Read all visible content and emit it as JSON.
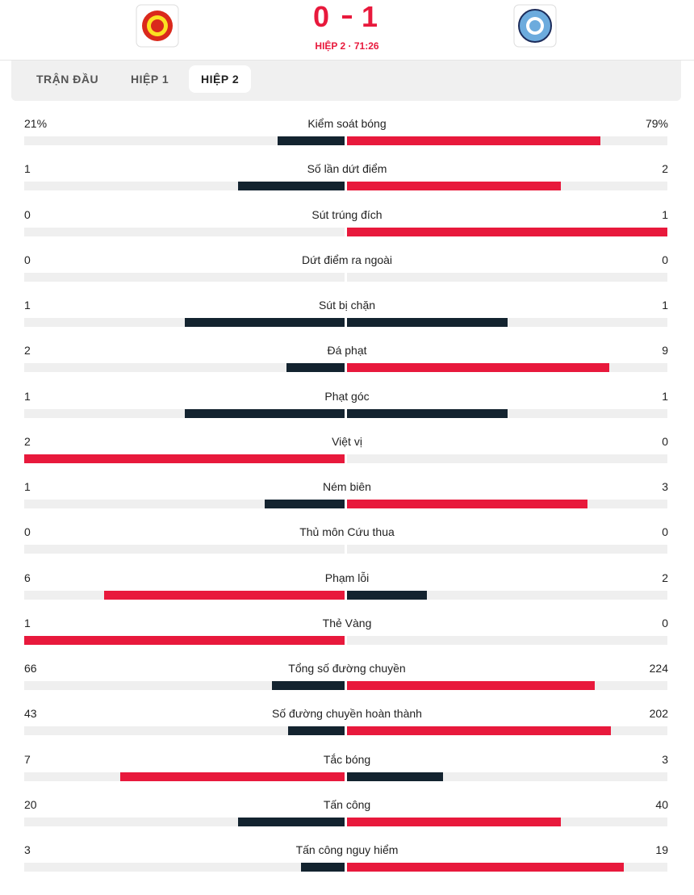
{
  "header": {
    "score": [
      0,
      1
    ],
    "status": "HIỆP 2 · 71:26"
  },
  "tabs": {
    "items": [
      "TRẬN ĐẦU",
      "HIỆP 1",
      "HIỆP 2"
    ],
    "active": 2
  },
  "stats": [
    {
      "label": "Kiểm soát bóng",
      "values": [
        21,
        79
      ],
      "value_labels": [
        "21%",
        "79%"
      ]
    },
    {
      "label": "Số lần dứt điểm",
      "values": [
        1,
        2
      ]
    },
    {
      "label": "Sút trúng đích",
      "values": [
        0,
        1
      ]
    },
    {
      "label": "Dứt điểm ra ngoài",
      "values": [
        0,
        0
      ]
    },
    {
      "label": "Sút bị chặn",
      "values": [
        1,
        1
      ]
    },
    {
      "label": "Đá phạt",
      "values": [
        2,
        9
      ]
    },
    {
      "label": "Phạt góc",
      "values": [
        1,
        1
      ]
    },
    {
      "label": "Việt vị",
      "values": [
        2,
        0
      ]
    },
    {
      "label": "Ném biên",
      "values": [
        1,
        3
      ]
    },
    {
      "label": "Thủ môn Cứu thua",
      "values": [
        0,
        0
      ]
    },
    {
      "label": "Phạm lỗi",
      "values": [
        6,
        2
      ]
    },
    {
      "label": "Thẻ Vàng",
      "values": [
        1,
        0
      ]
    },
    {
      "label": "Tổng số đường chuyền",
      "values": [
        66,
        224
      ]
    },
    {
      "label": "Số đường chuyền hoàn thành",
      "values": [
        43,
        202
      ]
    },
    {
      "label": "Tắc bóng",
      "values": [
        7,
        3
      ]
    },
    {
      "label": "Tấn công",
      "values": [
        20,
        40
      ]
    },
    {
      "label": "Tấn công nguy hiểm",
      "values": [
        3,
        19
      ]
    }
  ]
}
